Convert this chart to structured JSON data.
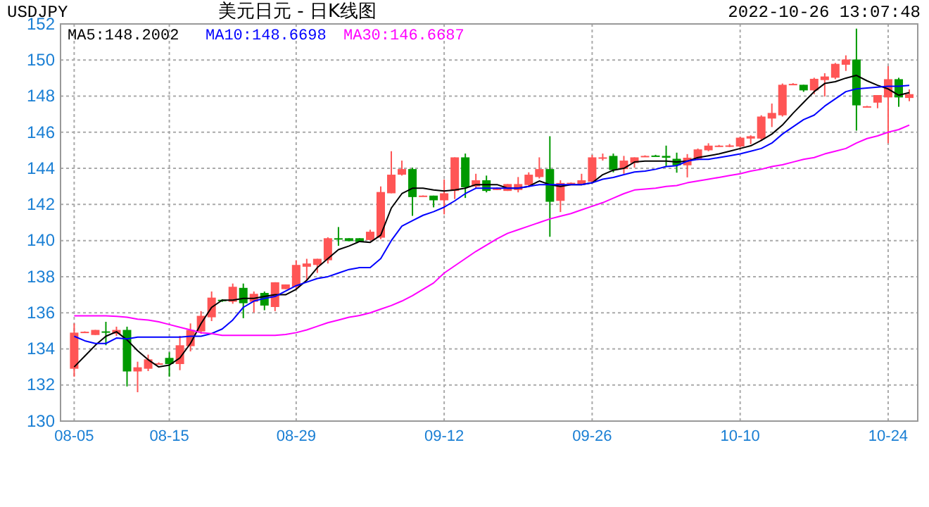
{
  "chart_data": {
    "type": "candlestick",
    "title": "美元日元 - 日K线图",
    "annotations": [
      "USDJPY",
      "2022-10-26 13:07:48"
    ],
    "categories": [
      "08-05",
      null,
      null,
      null,
      null,
      null,
      null,
      null,
      null,
      "08-15",
      null,
      null,
      null,
      null,
      null,
      null,
      null,
      null,
      null,
      null,
      null,
      "08-29",
      null,
      null,
      null,
      null,
      null,
      null,
      null,
      null,
      null,
      null,
      null,
      null,
      null,
      "09-12",
      null,
      null,
      null,
      null,
      null,
      null,
      null,
      null,
      null,
      null,
      null,
      null,
      null,
      "09-26",
      null,
      null,
      null,
      null,
      null,
      null,
      null,
      null,
      null,
      null,
      null,
      null,
      null,
      "10-10",
      null,
      null,
      null,
      null,
      null,
      null,
      null,
      null,
      null,
      null,
      null,
      null,
      null,
      "10-24",
      null,
      null
    ],
    "ohlc": [
      [
        132.9,
        135.41,
        132.46,
        134.9
      ],
      [
        134.93,
        134.97,
        134.9,
        134.95
      ],
      [
        134.77,
        135.05,
        134.77,
        135.05
      ],
      [
        134.97,
        135.5,
        134.2,
        134.95
      ],
      [
        134.84,
        135.23,
        134.72,
        135.05
      ],
      [
        135.05,
        135.23,
        131.92,
        132.75
      ],
      [
        132.75,
        133.29,
        131.6,
        132.98
      ],
      [
        132.9,
        133.68,
        132.77,
        133.42
      ],
      [
        133.18,
        133.25,
        133.15,
        133.2
      ],
      [
        133.5,
        133.81,
        132.46,
        133.16
      ],
      [
        133.16,
        134.72,
        132.82,
        134.2
      ],
      [
        134.15,
        135.41,
        133.86,
        135.05
      ],
      [
        134.97,
        136.09,
        134.84,
        135.83
      ],
      [
        135.75,
        137.18,
        135.54,
        136.84
      ],
      [
        136.72,
        136.75,
        136.6,
        136.7
      ],
      [
        136.61,
        137.62,
        136.5,
        137.44
      ],
      [
        137.38,
        137.62,
        135.7,
        136.53
      ],
      [
        136.61,
        137.18,
        136.01,
        137.05
      ],
      [
        137.1,
        137.18,
        136.14,
        136.4
      ],
      [
        136.32,
        137.69,
        136.09,
        137.69
      ],
      [
        137.31,
        137.57,
        137.31,
        137.57
      ],
      [
        137.44,
        138.91,
        137.31,
        138.65
      ],
      [
        138.55,
        138.99,
        137.82,
        138.73
      ],
      [
        138.65,
        138.99,
        138.21,
        138.99
      ],
      [
        138.91,
        140.18,
        138.73,
        140.13
      ],
      [
        140.13,
        140.75,
        139.71,
        140.1
      ],
      [
        140.13,
        140.13,
        139.97,
        139.97
      ],
      [
        140.13,
        140.13,
        139.92,
        139.92
      ],
      [
        140.03,
        140.6,
        140.0,
        140.49
      ],
      [
        140.16,
        143.0,
        140.08,
        142.69
      ],
      [
        142.62,
        144.95,
        142.62,
        143.65
      ],
      [
        143.65,
        144.43,
        143.6,
        143.96
      ],
      [
        143.96,
        144.04,
        141.37,
        142.41
      ],
      [
        142.47,
        142.5,
        142.45,
        142.49
      ],
      [
        142.49,
        142.49,
        141.84,
        142.23
      ],
      [
        142.23,
        143.39,
        141.45,
        142.62
      ],
      [
        142.75,
        144.61,
        142.3,
        144.61
      ],
      [
        144.61,
        144.82,
        142.36,
        142.95
      ],
      [
        143.0,
        143.7,
        142.88,
        143.34
      ],
      [
        143.34,
        143.6,
        142.67,
        142.75
      ],
      [
        142.85,
        142.95,
        142.8,
        142.88
      ],
      [
        142.75,
        143.13,
        142.75,
        143.13
      ],
      [
        142.8,
        143.52,
        142.67,
        143.13
      ],
      [
        143.08,
        143.78,
        143.0,
        143.65
      ],
      [
        143.52,
        144.61,
        143.44,
        143.96
      ],
      [
        143.96,
        145.78,
        140.21,
        142.15
      ],
      [
        142.2,
        143.34,
        141.58,
        143.19
      ],
      [
        143.18,
        143.22,
        143.15,
        143.2
      ],
      [
        143.13,
        143.7,
        143.08,
        143.34
      ],
      [
        143.26,
        144.74,
        143.19,
        144.61
      ],
      [
        144.58,
        144.82,
        144.43,
        144.61
      ],
      [
        144.69,
        144.82,
        143.78,
        143.91
      ],
      [
        143.96,
        144.69,
        143.7,
        144.43
      ],
      [
        144.3,
        144.61,
        144.04,
        144.61
      ],
      [
        144.66,
        144.72,
        144.63,
        144.69
      ],
      [
        144.71,
        144.75,
        144.66,
        144.69
      ],
      [
        144.69,
        145.26,
        144.09,
        144.59
      ],
      [
        144.53,
        144.87,
        143.76,
        144.17
      ],
      [
        144.17,
        144.79,
        143.5,
        144.59
      ],
      [
        144.53,
        145.1,
        144.45,
        145.05
      ],
      [
        145.0,
        145.39,
        144.95,
        145.26
      ],
      [
        145.23,
        145.3,
        145.2,
        145.26
      ],
      [
        145.24,
        145.35,
        145.18,
        145.27
      ],
      [
        145.21,
        145.75,
        145.15,
        145.7
      ],
      [
        145.65,
        145.83,
        145.34,
        145.78
      ],
      [
        145.65,
        146.94,
        145.52,
        146.87
      ],
      [
        146.76,
        147.59,
        146.29,
        147.07
      ],
      [
        146.94,
        148.7,
        146.87,
        148.63
      ],
      [
        148.66,
        148.72,
        148.63,
        148.68
      ],
      [
        148.63,
        148.63,
        148.24,
        148.32
      ],
      [
        148.32,
        149.02,
        148.11,
        148.96
      ],
      [
        148.89,
        149.27,
        147.98,
        149.09
      ],
      [
        149.02,
        149.84,
        148.94,
        149.79
      ],
      [
        149.74,
        150.26,
        149.4,
        150.03
      ],
      [
        150.03,
        151.74,
        146.09,
        147.49
      ],
      [
        147.4,
        147.46,
        147.38,
        147.44
      ],
      [
        147.64,
        148.06,
        147.33,
        148.06
      ],
      [
        147.93,
        149.66,
        145.39,
        148.94
      ],
      [
        148.94,
        149.02,
        147.41,
        147.93
      ],
      [
        147.9,
        148.37,
        147.72,
        148.11
      ]
    ],
    "colors": [
      "#ff5555",
      "#ff5555",
      "#ff5555",
      "#009900",
      "#ff5555",
      "#009900",
      "#ff5555",
      "#ff5555",
      "#ff5555",
      "#009900",
      "#ff5555",
      "#ff5555",
      "#ff5555",
      "#ff5555",
      "#009900",
      "#ff5555",
      "#009900",
      "#ff5555",
      "#009900",
      "#ff5555",
      "#ff5555",
      "#ff5555",
      "#ff5555",
      "#ff5555",
      "#ff5555",
      "#009900",
      "#009900",
      "#009900",
      "#ff5555",
      "#ff5555",
      "#ff5555",
      "#ff5555",
      "#009900",
      "#ff5555",
      "#009900",
      "#ff5555",
      "#ff5555",
      "#009900",
      "#ff5555",
      "#009900",
      "#ff5555",
      "#ff5555",
      "#ff5555",
      "#ff5555",
      "#ff5555",
      "#009900",
      "#ff5555",
      "#ff5555",
      "#ff5555",
      "#ff5555",
      "#ff5555",
      "#009900",
      "#ff5555",
      "#ff5555",
      "#ff5555",
      "#009900",
      "#009900",
      "#009900",
      "#ff5555",
      "#ff5555",
      "#ff5555",
      "#ff5555",
      "#ff5555",
      "#ff5555",
      "#ff5555",
      "#ff5555",
      "#ff5555",
      "#ff5555",
      "#ff5555",
      "#009900",
      "#ff5555",
      "#ff5555",
      "#ff5555",
      "#ff5555",
      "#009900",
      "#ff5555",
      "#ff5555",
      "#ff5555",
      "#009900",
      "#ff5555"
    ],
    "series": [
      {
        "type": "line",
        "name": "MA5:148.2002",
        "color": "#000000",
        "values": [
          133.0,
          133.6,
          134.2,
          134.7,
          134.95,
          134.5,
          133.9,
          133.4,
          133.0,
          133.1,
          133.5,
          134.3,
          135.4,
          136.3,
          136.7,
          136.7,
          136.8,
          136.8,
          136.9,
          137.0,
          137.0,
          137.3,
          137.8,
          138.5,
          139.0,
          139.5,
          139.7,
          139.95,
          139.9,
          140.3,
          141.8,
          142.6,
          142.9,
          142.9,
          142.8,
          142.75,
          142.8,
          142.9,
          143.1,
          143.1,
          143.1,
          142.9,
          142.9,
          143.0,
          143.3,
          143.1,
          143.0,
          143.1,
          143.1,
          143.2,
          143.65,
          143.9,
          144.0,
          144.35,
          144.4,
          144.4,
          144.4,
          144.35,
          144.4,
          144.6,
          144.7,
          144.8,
          144.95,
          145.1,
          145.25,
          145.55,
          145.9,
          146.4,
          147.05,
          147.65,
          148.25,
          148.7,
          148.8,
          149.0,
          149.15,
          148.85,
          148.6,
          148.4,
          148.05,
          148.2
        ]
      },
      {
        "type": "line",
        "name": "MA10:148.6698",
        "color": "#0000ff",
        "values": [
          134.7,
          134.45,
          134.3,
          134.3,
          134.6,
          134.55,
          134.65,
          134.65,
          134.65,
          134.65,
          134.65,
          134.7,
          134.7,
          134.85,
          135.1,
          135.6,
          136.3,
          136.65,
          136.8,
          136.9,
          137.2,
          137.5,
          137.7,
          137.9,
          138.0,
          138.2,
          138.4,
          138.5,
          138.5,
          139.0,
          140.0,
          140.8,
          141.1,
          141.4,
          141.6,
          141.85,
          142.2,
          142.6,
          142.9,
          142.9,
          142.9,
          142.9,
          142.9,
          143.0,
          143.1,
          143.1,
          143.1,
          143.1,
          143.1,
          143.2,
          143.4,
          143.5,
          143.65,
          143.8,
          143.85,
          143.95,
          144.1,
          144.15,
          144.4,
          144.5,
          144.5,
          144.6,
          144.7,
          144.8,
          144.95,
          145.1,
          145.4,
          145.9,
          146.3,
          146.7,
          146.95,
          147.45,
          147.85,
          148.25,
          148.4,
          148.45,
          148.5,
          148.55,
          148.55,
          148.6
        ]
      },
      {
        "type": "line",
        "name": "MA30:146.6687",
        "color": "#ff00ff",
        "values": [
          135.83,
          135.83,
          135.83,
          135.83,
          135.8,
          135.75,
          135.65,
          135.6,
          135.5,
          135.35,
          135.2,
          135.05,
          134.9,
          134.85,
          134.75,
          134.75,
          134.75,
          134.75,
          134.75,
          134.75,
          134.8,
          134.9,
          135.05,
          135.25,
          135.45,
          135.6,
          135.75,
          135.85,
          136.0,
          136.2,
          136.4,
          136.65,
          136.95,
          137.3,
          137.65,
          138.2,
          138.6,
          139.0,
          139.4,
          139.75,
          140.1,
          140.4,
          140.6,
          140.8,
          141.0,
          141.2,
          141.35,
          141.5,
          141.7,
          141.9,
          142.1,
          142.35,
          142.6,
          142.8,
          142.85,
          142.9,
          143.0,
          143.05,
          143.2,
          143.3,
          143.4,
          143.5,
          143.6,
          143.7,
          143.85,
          143.95,
          144.1,
          144.2,
          144.35,
          144.5,
          144.6,
          144.8,
          144.95,
          145.1,
          145.4,
          145.65,
          145.8,
          146.0,
          146.15,
          146.4
        ]
      }
    ],
    "ylim": [
      130,
      152
    ],
    "yticks": [
      130,
      132,
      134,
      136,
      138,
      140,
      142,
      144,
      146,
      148,
      150,
      152
    ],
    "grid": true,
    "legend": "top left"
  }
}
